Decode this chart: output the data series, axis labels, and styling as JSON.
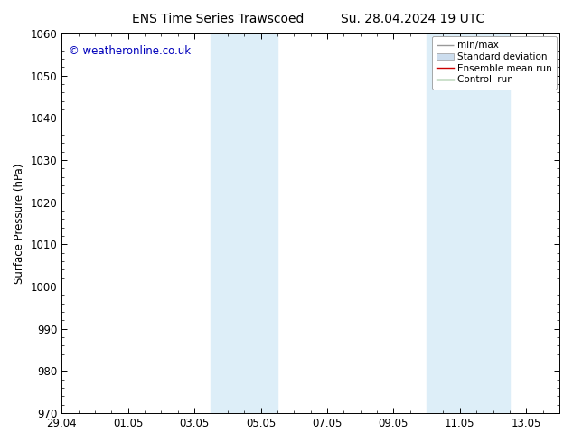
{
  "title_left": "ENS Time Series Trawscoed",
  "title_right": "Su. 28.04.2024 19 UTC",
  "ylabel": "Surface Pressure (hPa)",
  "ylim": [
    970,
    1060
  ],
  "yticks": [
    970,
    980,
    990,
    1000,
    1010,
    1020,
    1030,
    1040,
    1050,
    1060
  ],
  "xlim": [
    0,
    15
  ],
  "xtick_labels": [
    "29.04",
    "01.05",
    "03.05",
    "05.05",
    "07.05",
    "09.05",
    "11.05",
    "13.05"
  ],
  "xtick_positions": [
    0,
    2,
    4,
    6,
    8,
    10,
    12,
    14
  ],
  "shaded_bands": [
    {
      "x_start": 4.5,
      "x_end": 6.5,
      "color": "#ddeef8"
    },
    {
      "x_start": 11.0,
      "x_end": 13.5,
      "color": "#ddeef8"
    }
  ],
  "watermark": "© weatheronline.co.uk",
  "watermark_color": "#0000bb",
  "background_color": "#ffffff",
  "plot_bg_color": "#ffffff",
  "font_size": 8.5,
  "title_font_size": 10,
  "legend_font_size": 7.5
}
